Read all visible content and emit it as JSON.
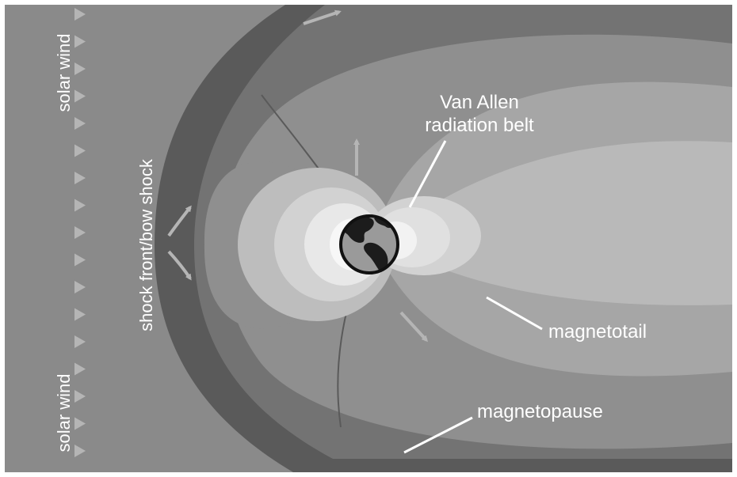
{
  "labels": {
    "solar_wind_top": "solar wind",
    "solar_wind_bottom": "solar wind",
    "shock_front": "shock front/bow shock",
    "van_allen_line1": "Van Allen",
    "van_allen_line2": "radiation belt",
    "magnetotail": "magnetotail",
    "magnetopause": "magnetopause"
  },
  "colors": {
    "background_solar_wind": "#8a8a8a",
    "shock_band": "#5a5a5a",
    "magnetosheath": "#737373",
    "magnetosphere": "#8f8f8f",
    "tail_middle": "#a6a6a6",
    "tail_inner": "#b9b9b9",
    "belt_outer": "#bdbdbd",
    "belt_middle": "#d2d2d2",
    "belt_inner": "#e8e8e8",
    "belt_core": "#f7f7f7",
    "arrow": "#b5b5b5",
    "label": "#ffffff",
    "earth_ocean": "#9a9a9a",
    "earth_land": "#1c1c1c"
  },
  "icons": {
    "earth": "earth-globe-icon",
    "flow_arrow": "flow-arrow-icon",
    "wind_triangle": "solar-wind-triangle-icon"
  }
}
